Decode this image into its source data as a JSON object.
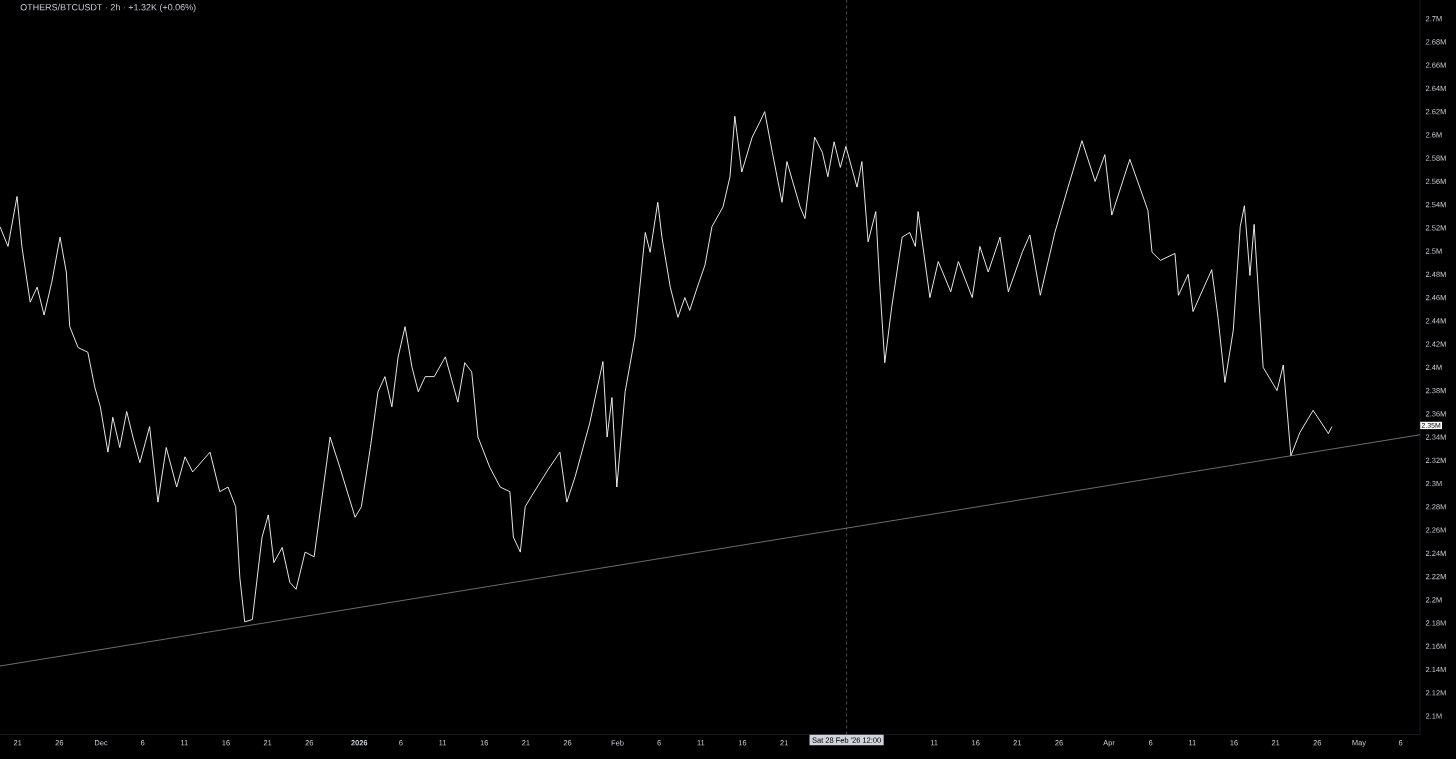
{
  "chart_data": {
    "type": "line",
    "title": "OTHERS/BTCUSDT · 2h · +1.32K (+0.06%)",
    "xlim": [
      "2025-11-18T21:00",
      "2026-05-08T08:00"
    ],
    "ylim": [
      2.084,
      2.719
    ],
    "xticks": [
      {
        "value": "2025-11-21",
        "label": "21"
      },
      {
        "value": "2025-11-26",
        "label": "26"
      },
      {
        "value": "2025-12-01",
        "label": "Dec"
      },
      {
        "value": "2025-12-06",
        "label": "6"
      },
      {
        "value": "2025-12-11",
        "label": "11"
      },
      {
        "value": "2025-12-16",
        "label": "16"
      },
      {
        "value": "2025-12-21",
        "label": "21"
      },
      {
        "value": "2025-12-26",
        "label": "26"
      },
      {
        "value": "2026-01-01",
        "label": "2026"
      },
      {
        "value": "2026-01-06",
        "label": "6"
      },
      {
        "value": "2026-01-11",
        "label": "11"
      },
      {
        "value": "2026-01-16",
        "label": "16"
      },
      {
        "value": "2026-01-21",
        "label": "21"
      },
      {
        "value": "2026-01-26",
        "label": "26"
      },
      {
        "value": "2026-02-01",
        "label": "Feb"
      },
      {
        "value": "2026-02-06",
        "label": "6"
      },
      {
        "value": "2026-02-11",
        "label": "11"
      },
      {
        "value": "2026-02-16",
        "label": "16"
      },
      {
        "value": "2026-02-21",
        "label": "21"
      },
      {
        "value": "2026-03-11",
        "label": "11"
      },
      {
        "value": "2026-03-16",
        "label": "16"
      },
      {
        "value": "2026-03-21",
        "label": "21"
      },
      {
        "value": "2026-03-26",
        "label": "26"
      },
      {
        "value": "2026-04-01",
        "label": "Apr"
      },
      {
        "value": "2026-04-06",
        "label": "6"
      },
      {
        "value": "2026-04-11",
        "label": "11"
      },
      {
        "value": "2026-04-16",
        "label": "16"
      },
      {
        "value": "2026-04-21",
        "label": "21"
      },
      {
        "value": "2026-04-26",
        "label": "26"
      },
      {
        "value": "2026-05-01",
        "label": "May"
      },
      {
        "value": "2026-05-06",
        "label": "6"
      }
    ],
    "yticks": [
      {
        "value": 2.1,
        "label": "2.1M"
      },
      {
        "value": 2.12,
        "label": "2.12M"
      },
      {
        "value": 2.14,
        "label": "2.14M"
      },
      {
        "value": 2.16,
        "label": "2.16M"
      },
      {
        "value": 2.18,
        "label": "2.18M"
      },
      {
        "value": 2.2,
        "label": "2.2M"
      },
      {
        "value": 2.22,
        "label": "2.22M"
      },
      {
        "value": 2.24,
        "label": "2.24M"
      },
      {
        "value": 2.26,
        "label": "2.26M"
      },
      {
        "value": 2.28,
        "label": "2.28M"
      },
      {
        "value": 2.3,
        "label": "2.3M"
      },
      {
        "value": 2.32,
        "label": "2.32M"
      },
      {
        "value": 2.34,
        "label": "2.34M"
      },
      {
        "value": 2.36,
        "label": "2.36M"
      },
      {
        "value": 2.38,
        "label": "2.38M"
      },
      {
        "value": 2.4,
        "label": "2.4M"
      },
      {
        "value": 2.42,
        "label": "2.42M"
      },
      {
        "value": 2.44,
        "label": "2.44M"
      },
      {
        "value": 2.46,
        "label": "2.46M"
      },
      {
        "value": 2.48,
        "label": "2.48M"
      },
      {
        "value": 2.5,
        "label": "2.5M"
      },
      {
        "value": 2.52,
        "label": "2.52M"
      },
      {
        "value": 2.54,
        "label": "2.54M"
      },
      {
        "value": 2.56,
        "label": "2.56M"
      },
      {
        "value": 2.58,
        "label": "2.58M"
      },
      {
        "value": 2.6,
        "label": "2.6M"
      },
      {
        "value": 2.62,
        "label": "2.62M"
      },
      {
        "value": 2.64,
        "label": "2.64M"
      },
      {
        "value": 2.66,
        "label": "2.66M"
      },
      {
        "value": 2.68,
        "label": "2.68M"
      },
      {
        "value": 2.7,
        "label": "2.7M"
      }
    ],
    "series": [
      {
        "color": "#ffffff",
        "x": [
          "2025-11-18T21:00",
          "2025-11-19T20:00",
          "2025-11-20T22:00",
          "2025-11-21T12:00",
          "2025-11-22T12:00",
          "2025-11-23T08:00",
          "2025-11-24T04:00",
          "2025-11-25T02:00",
          "2025-11-26T02:00",
          "2025-11-26T20:00",
          "2025-11-27T06:00",
          "2025-11-28T06:00",
          "2025-11-29T10:00",
          "2025-11-30T06:00",
          "2025-11-30T22:00",
          "2025-12-01T20:00",
          "2025-12-02T10:00",
          "2025-12-03T06:00",
          "2025-12-04T02:00",
          "2025-12-04T20:00",
          "2025-12-05T16:00",
          "2025-12-06T20:00",
          "2025-12-07T20:00",
          "2025-12-08T20:00",
          "2025-12-10T02:00",
          "2025-12-11T02:00",
          "2025-12-12T00:00",
          "2025-12-14T02:00",
          "2025-12-15T06:00",
          "2025-12-16T06:00",
          "2025-12-17T04:00",
          "2025-12-17T16:00",
          "2025-12-18T06:00",
          "2025-12-19T04:00",
          "2025-12-19T20:00",
          "2025-12-20T08:00",
          "2025-12-21T02:00",
          "2025-12-21T18:00",
          "2025-12-22T18:00",
          "2025-12-23T16:00",
          "2025-12-24T10:00",
          "2025-12-25T12:00",
          "2025-12-26T14:00",
          "2025-12-27T06:00",
          "2025-12-28T12:00",
          "2025-12-29T16:00",
          "2025-12-31T12:00",
          "2026-01-01T06:00",
          "2026-01-02T08:00",
          "2026-01-03T06:00",
          "2026-01-04T02:00",
          "2026-01-04T22:00",
          "2026-01-05T16:00",
          "2026-01-06T12:00",
          "2026-01-07T08:00",
          "2026-01-08T02:00",
          "2026-01-08T22:00",
          "2026-01-10T00:00",
          "2026-01-11T08:00",
          "2026-01-12T20:00",
          "2026-01-13T16:00",
          "2026-01-14T12:00",
          "2026-01-15T06:00",
          "2026-01-16T16:00",
          "2026-01-17T22:00",
          "2026-01-19T02:00",
          "2026-01-19T12:00",
          "2026-01-20T08:00",
          "2026-01-20T22:00",
          "2026-01-21T18:00",
          "2026-01-23T16:00",
          "2026-01-25T02:00",
          "2026-01-25T22:00",
          "2026-01-26T22:00",
          "2026-01-28T16:00",
          "2026-01-30T06:00",
          "2026-01-30T18:00",
          "2026-01-31T08:00",
          "2026-01-31T22:00",
          "2026-02-01T22:00",
          "2026-02-03T02:00",
          "2026-02-04T08:00",
          "2026-02-04T22:00",
          "2026-02-05T20:00",
          "2026-02-06T08:00",
          "2026-02-07T08:00",
          "2026-02-08T06:00",
          "2026-02-09T02:00",
          "2026-02-09T16:00",
          "2026-02-10T14:00",
          "2026-02-11T12:00",
          "2026-02-12T08:00",
          "2026-02-13T16:00",
          "2026-02-14T12:00",
          "2026-02-15T02:00",
          "2026-02-15T22:00",
          "2026-02-17T04:00",
          "2026-02-18T02:00",
          "2026-02-18T16:00",
          "2026-02-19T14:00",
          "2026-02-20T18:00",
          "2026-02-21T08:00",
          "2026-02-22T22:00",
          "2026-02-23T12:00",
          "2026-02-24T16:00",
          "2026-02-25T14:00",
          "2026-02-26T06:00",
          "2026-02-27T00:00",
          "2026-02-27T18:00",
          "2026-02-28T10:00",
          "2026-03-01T18:00",
          "2026-03-02T08:00",
          "2026-03-03T02:00",
          "2026-03-04T00:00",
          "2026-03-04T12:00",
          "2026-03-05T02:00",
          "2026-03-05T22:00",
          "2026-03-07T04:00",
          "2026-03-08T02:00",
          "2026-03-08T18:00",
          "2026-03-09T02:00",
          "2026-03-10T12:00",
          "2026-03-11T12:00",
          "2026-03-13T00:00",
          "2026-03-13T22:00",
          "2026-03-15T14:00",
          "2026-03-16T12:00",
          "2026-03-17T12:00",
          "2026-03-18T22:00",
          "2026-03-19T22:00",
          "2026-03-21T14:00",
          "2026-03-22T12:00",
          "2026-03-23T18:00",
          "2026-03-25T12:00",
          "2026-03-27T02:00",
          "2026-03-28T18:00",
          "2026-03-30T08:00",
          "2026-03-31T12:00",
          "2026-04-01T08:00",
          "2026-04-03T12:00",
          "2026-04-05T16:00",
          "2026-04-06T04:00",
          "2026-04-07T04:00",
          "2026-04-08T22:00",
          "2026-04-09T08:00",
          "2026-04-10T12:00",
          "2026-04-11T02:00",
          "2026-04-13T08:00",
          "2026-04-14T02:00",
          "2026-04-14T22:00",
          "2026-04-15T22:00",
          "2026-04-16T18:00",
          "2026-04-17T06:00",
          "2026-04-17T22:00",
          "2026-04-18T10:00",
          "2026-04-19T12:00",
          "2026-04-21T04:00",
          "2026-04-21T22:00",
          "2026-04-22T20:00",
          "2026-04-23T22:00",
          "2026-04-25T12:00",
          "2026-04-27T08:00",
          "2026-04-27T18:00"
        ],
        "values": [
          2.521,
          2.504,
          2.547,
          2.504,
          2.456,
          2.469,
          2.445,
          2.473,
          2.512,
          2.482,
          2.435,
          2.417,
          2.413,
          2.383,
          2.366,
          2.327,
          2.357,
          2.331,
          2.362,
          2.34,
          2.318,
          2.349,
          2.284,
          2.331,
          2.297,
          2.323,
          2.31,
          2.327,
          2.293,
          2.297,
          2.28,
          2.219,
          2.181,
          2.183,
          2.224,
          2.254,
          2.273,
          2.232,
          2.245,
          2.215,
          2.209,
          2.241,
          2.237,
          2.273,
          2.34,
          2.314,
          2.271,
          2.28,
          2.331,
          2.379,
          2.392,
          2.366,
          2.409,
          2.435,
          2.4,
          2.379,
          2.392,
          2.392,
          2.409,
          2.37,
          2.404,
          2.396,
          2.34,
          2.314,
          2.297,
          2.293,
          2.254,
          2.241,
          2.28,
          2.29,
          2.312,
          2.327,
          2.284,
          2.306,
          2.352,
          2.405,
          2.34,
          2.374,
          2.297,
          2.379,
          2.426,
          2.516,
          2.499,
          2.542,
          2.512,
          2.469,
          2.443,
          2.46,
          2.449,
          2.469,
          2.488,
          2.521,
          2.538,
          2.564,
          2.616,
          2.568,
          2.598,
          2.611,
          2.62,
          2.585,
          2.542,
          2.577,
          2.538,
          2.528,
          2.598,
          2.585,
          2.564,
          2.594,
          2.572,
          2.59,
          2.555,
          2.577,
          2.508,
          2.534,
          2.469,
          2.404,
          2.452,
          2.512,
          2.516,
          2.504,
          2.534,
          2.46,
          2.491,
          2.465,
          2.491,
          2.46,
          2.504,
          2.482,
          2.512,
          2.465,
          2.499,
          2.514,
          2.462,
          2.516,
          2.555,
          2.595,
          2.56,
          2.583,
          2.531,
          2.579,
          2.535,
          2.499,
          2.492,
          2.498,
          2.462,
          2.48,
          2.448,
          2.484,
          2.443,
          2.387,
          2.432,
          2.521,
          2.539,
          2.479,
          2.523,
          2.4,
          2.38,
          2.402,
          2.324,
          2.344,
          2.363,
          2.343,
          2.349
        ]
      },
      {
        "type": "line",
        "color": "#b2b5be",
        "x": [
          "2025-11-18T21:00",
          "2026-05-08T08:00"
        ],
        "values": [
          2.143,
          2.342
        ]
      }
    ],
    "ref_lines": [
      {
        "axis": "x",
        "value": "2026-02-28T12:00",
        "label": "Sat 28 Feb '26  12:00",
        "color": "#9598a1",
        "line_style": "dashed"
      }
    ],
    "annotations": [
      {
        "text": "2.35M",
        "y": 2.35
      }
    ]
  }
}
